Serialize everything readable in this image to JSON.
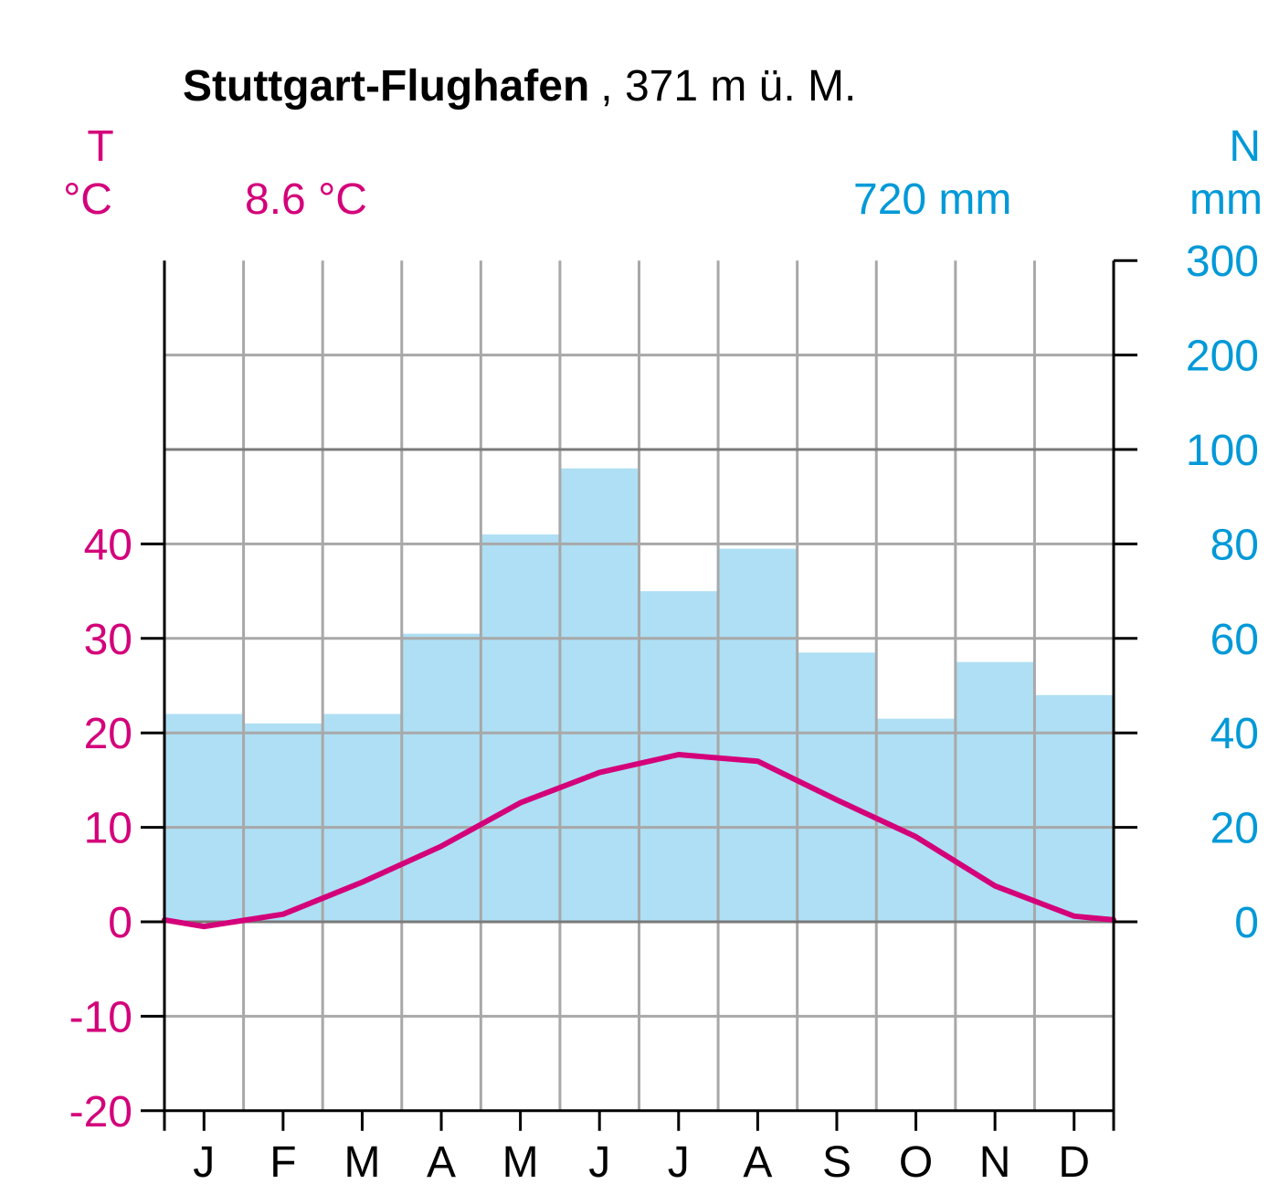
{
  "chart_data": {
    "type": "climate_diagram",
    "title": {
      "station": "Stuttgart-Flughafen",
      "elevation": ", 371 m ü. M."
    },
    "temp_axis": {
      "symbol": "T",
      "unit": "°C",
      "mean_label": "8.6 °C",
      "ticks": [
        "40",
        "30",
        "20",
        "10",
        "0",
        "-10",
        "-20"
      ],
      "range": [
        -20,
        50
      ]
    },
    "precip_axis": {
      "symbol": "N",
      "unit": "mm",
      "total_label": "720 mm",
      "ticks": [
        "300",
        "200",
        "100",
        "80",
        "60",
        "40",
        "20",
        "0"
      ],
      "range": [
        0,
        300
      ],
      "scale_note": "2 mm per °C up to 100 mm, then 100 mm per 10 °C-step"
    },
    "categories": [
      "J",
      "F",
      "M",
      "A",
      "M",
      "J",
      "J",
      "A",
      "S",
      "O",
      "N",
      "D"
    ],
    "series": [
      {
        "kind": "precipitation",
        "type": "bar",
        "values": [
          44,
          42,
          44,
          61,
          82,
          96,
          70,
          79,
          57,
          43,
          55,
          48
        ]
      },
      {
        "kind": "temperature",
        "type": "line",
        "values": [
          -0.5,
          0.8,
          4.2,
          8.0,
          12.6,
          15.8,
          17.7,
          17.0,
          12.9,
          9.0,
          3.8,
          0.6
        ],
        "edge_value": 0.2
      }
    ],
    "grid": true,
    "colors": {
      "temperature": "#d4007a",
      "precipitation_text": "#0099d8",
      "precipitation_fill": "#aedff4",
      "grid": "#a8a8a8",
      "axis": "#000000"
    }
  }
}
